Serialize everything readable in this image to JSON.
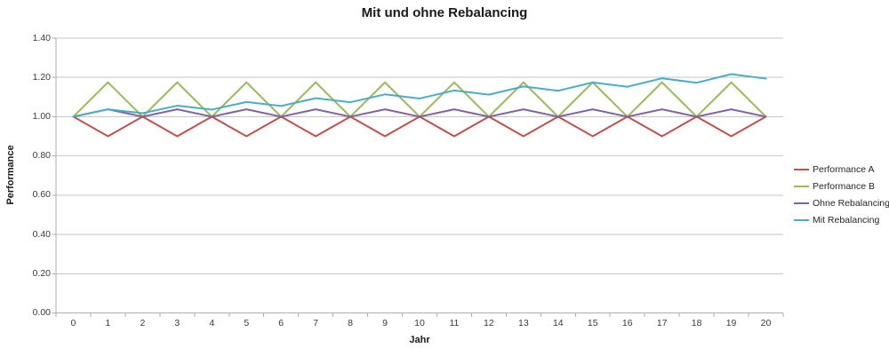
{
  "title": "Mit und ohne Rebalancing",
  "chart_data": {
    "type": "line",
    "title": "Mit und ohne Rebalancing",
    "xlabel": "Jahr",
    "ylabel": "Performance",
    "x": [
      0,
      1,
      2,
      3,
      4,
      5,
      6,
      7,
      8,
      9,
      10,
      11,
      12,
      13,
      14,
      15,
      16,
      17,
      18,
      19,
      20
    ],
    "x_tick_labels": [
      "0",
      "1",
      "2",
      "3",
      "4",
      "5",
      "6",
      "7",
      "8",
      "9",
      "10",
      "11",
      "12",
      "13",
      "14",
      "15",
      "16",
      "17",
      "18",
      "19",
      "20"
    ],
    "y_tick_labels": [
      "0.00",
      "0.20",
      "0.40",
      "0.60",
      "0.80",
      "1.00",
      "1.20",
      "1.40"
    ],
    "ylim": [
      0,
      1.4
    ],
    "ytick_step": 0.2,
    "grid": true,
    "legend_position": "right",
    "series": [
      {
        "name": "Performance A",
        "color": "#C0504D",
        "values": [
          1.0,
          0.9,
          1.0,
          0.9,
          1.0,
          0.9,
          1.0,
          0.9,
          1.0,
          0.9,
          1.0,
          0.9,
          1.0,
          0.9,
          1.0,
          0.9,
          1.0,
          0.9,
          1.0,
          0.9,
          1.0
        ]
      },
      {
        "name": "Performance B",
        "color": "#9BBB59",
        "values": [
          1.0,
          1.175,
          1.0,
          1.175,
          1.0,
          1.175,
          1.0,
          1.175,
          1.0,
          1.175,
          1.0,
          1.175,
          1.0,
          1.175,
          1.0,
          1.175,
          1.0,
          1.175,
          1.0,
          1.175,
          1.0
        ]
      },
      {
        "name": "Ohne Rebalancing",
        "color": "#8064A2",
        "values": [
          1.0,
          1.0375,
          1.0,
          1.0375,
          1.0,
          1.0375,
          1.0,
          1.0375,
          1.0,
          1.0375,
          1.0,
          1.0375,
          1.0,
          1.0375,
          1.0,
          1.0375,
          1.0,
          1.0375,
          1.0,
          1.0375,
          1.0
        ]
      },
      {
        "name": "Mit Rebalancing",
        "color": "#4BACC6",
        "values": [
          1.0,
          1.0375,
          1.0179,
          1.056,
          1.0361,
          1.0749,
          1.0546,
          1.0941,
          1.0735,
          1.1137,
          1.0926,
          1.1336,
          1.1122,
          1.1539,
          1.1321,
          1.1745,
          1.1523,
          1.1955,
          1.1729,
          1.2169,
          1.1939
        ]
      }
    ],
    "colors": {
      "gridline": "#C6C6C6",
      "axis": "#ADADAD",
      "text": "#3a3a3a",
      "title_text": "#1a1a1a"
    }
  }
}
